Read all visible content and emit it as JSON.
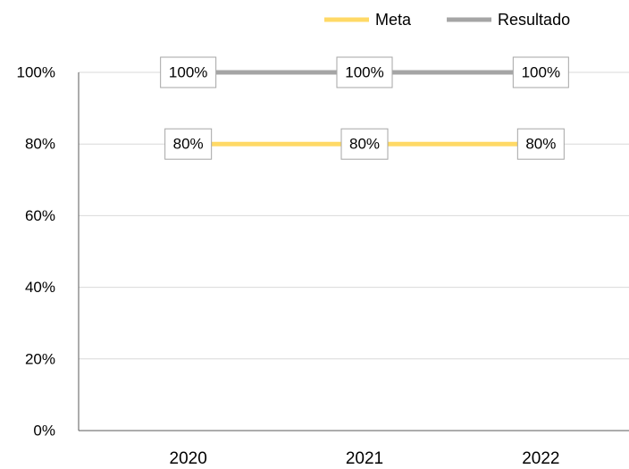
{
  "chart_data": {
    "type": "line",
    "categories": [
      "2020",
      "2021",
      "2022"
    ],
    "series": [
      {
        "name": "Meta",
        "color": "#ffd966",
        "values": [
          80,
          80,
          80
        ],
        "value_labels": [
          "80%",
          "80%",
          "80%"
        ]
      },
      {
        "name": "Resultado",
        "color": "#a5a5a5",
        "values": [
          100,
          100,
          100
        ],
        "value_labels": [
          "100%",
          "100%",
          "100%"
        ]
      }
    ],
    "ylim": [
      0,
      100
    ],
    "yticks": [
      {
        "value": 0,
        "label": "0%"
      },
      {
        "value": 20,
        "label": "20%"
      },
      {
        "value": 40,
        "label": "40%"
      },
      {
        "value": 60,
        "label": "60%"
      },
      {
        "value": 80,
        "label": "80%"
      },
      {
        "value": 100,
        "label": "100%"
      }
    ],
    "grid": true,
    "legend": "top"
  }
}
